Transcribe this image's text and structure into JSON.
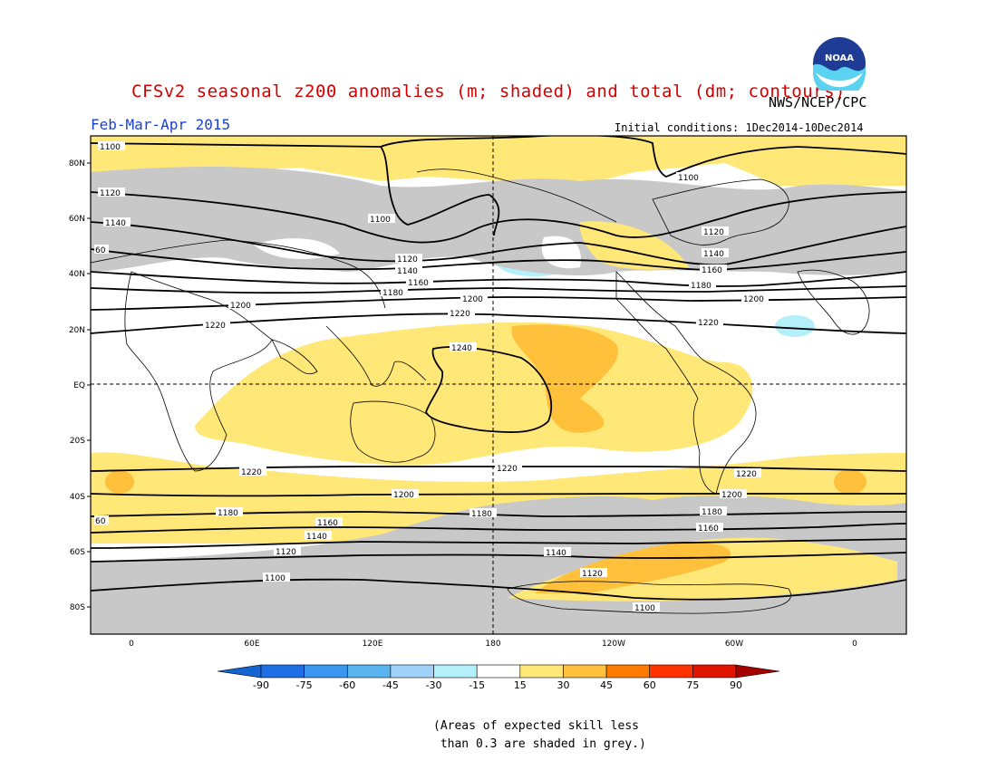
{
  "header": {
    "title": "CFSv2 seasonal z200 anomalies (m; shaded) and total (dm; contours)",
    "agency": "NWS/NCEP/CPC",
    "season": "Feb-Mar-Apr 2015",
    "initial_conditions": "Initial conditions: 1Dec2014-10Dec2014",
    "logo_text": "NOAA"
  },
  "map": {
    "lat_labels": [
      "80N",
      "60N",
      "40N",
      "20N",
      "EQ",
      "20S",
      "40S",
      "60S",
      "80S"
    ],
    "lon_labels": [
      "0",
      "60E",
      "120E",
      "180",
      "120W",
      "60W",
      "0"
    ],
    "contour_labels": [
      "1100",
      "1120",
      "1140",
      "1160",
      "1180",
      "1200",
      "1220",
      "1240"
    ],
    "label_60": "60"
  },
  "colorbar": {
    "ticks": [
      "-90",
      "-75",
      "-60",
      "-45",
      "-30",
      "-15",
      "15",
      "30",
      "45",
      "60",
      "75",
      "90"
    ],
    "colors": [
      "#1464d2",
      "#1e6ee6",
      "#3c96f0",
      "#5ab4f0",
      "#a0d2fa",
      "#b4f0fa",
      "#ffffff",
      "#ffe878",
      "#ffc03c",
      "#ff7a00",
      "#ff3200",
      "#e11400",
      "#a50000"
    ]
  },
  "footnote": {
    "line1": "(Areas of expected skill less",
    "line2": "than 0.3 are shaded in grey.)"
  },
  "colors": {
    "grey": "#c8c8c8",
    "yellow": "#ffe878",
    "orange": "#ffc03c",
    "dark_orange": "#ff7a00",
    "light_blue": "#b4f0fa",
    "title_red": "#d40000",
    "season_blue": "#1a3fd6"
  }
}
